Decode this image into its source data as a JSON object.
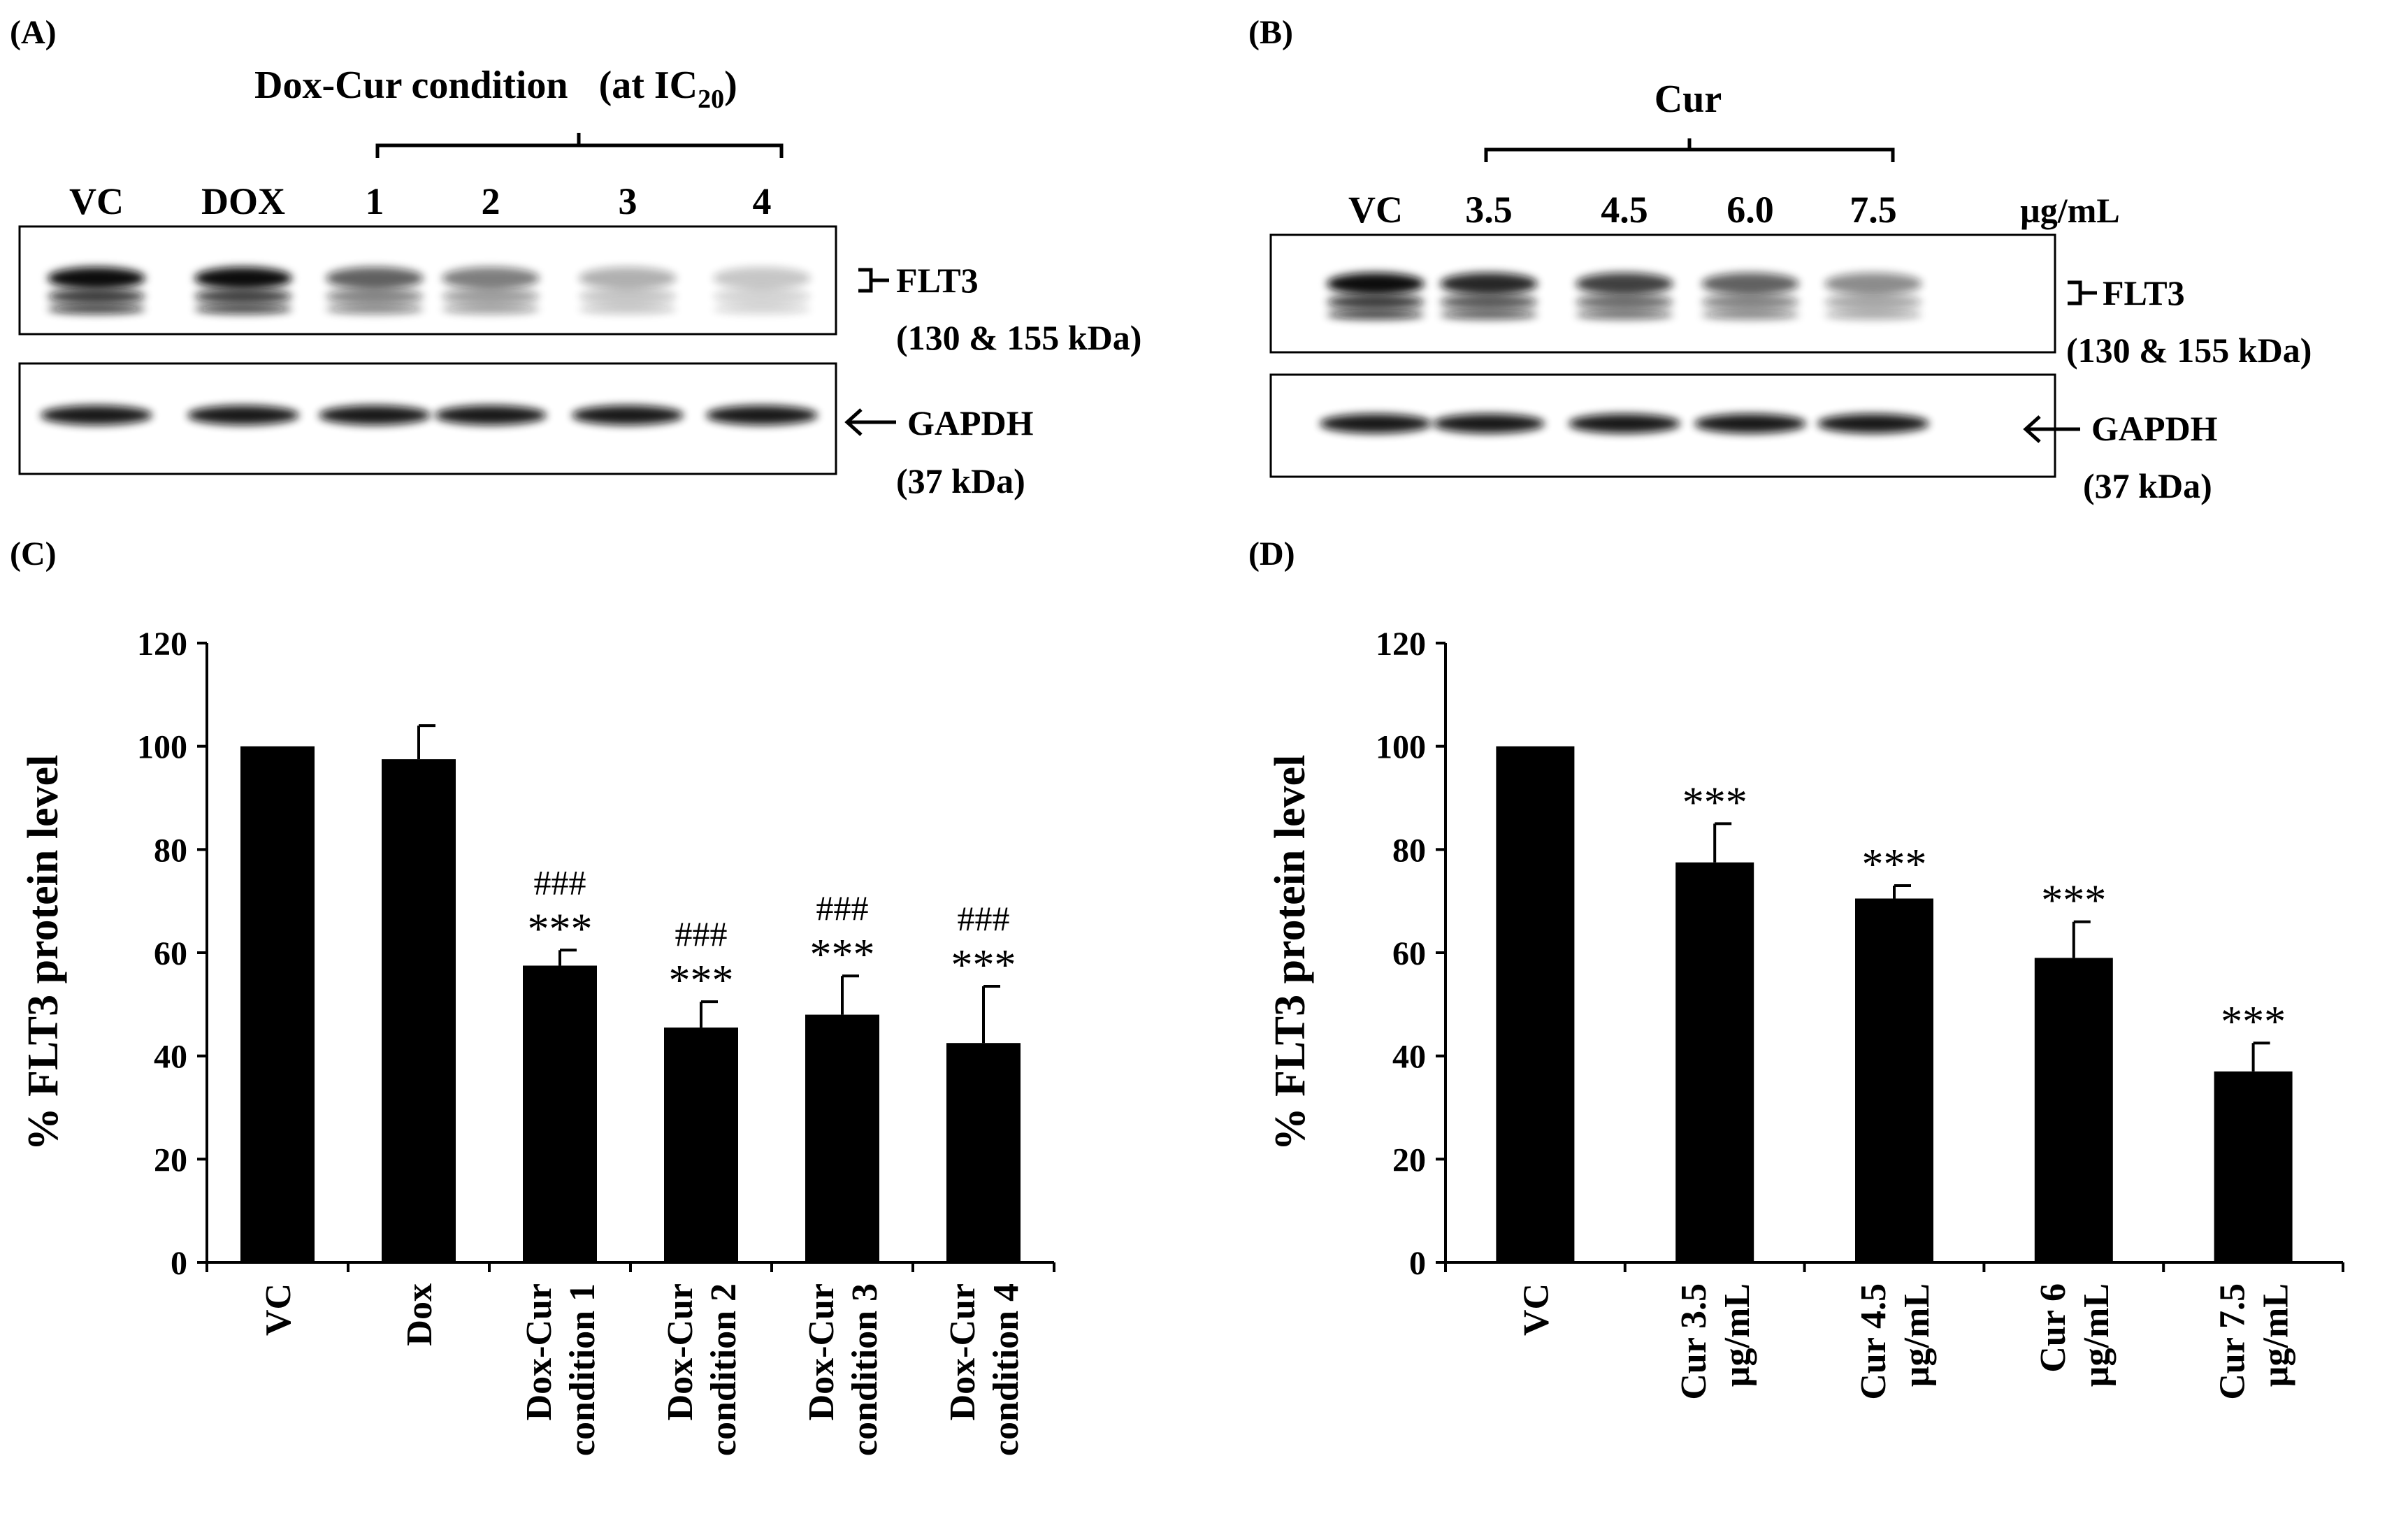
{
  "panels": {
    "a": {
      "label": "(A)",
      "header": "Dox-Cur condition",
      "header_suffix": "(at IC",
      "header_sub": "20",
      "header_close": ")",
      "lanes": [
        "VC",
        "DOX",
        "1",
        "2",
        "3",
        "4"
      ],
      "band1_name": "FLT3",
      "band1_kda": "(130 & 155 kDa)",
      "band2_name": "GAPDH",
      "band2_kda": "(37 kDa)",
      "flt3_intensity": [
        1.0,
        0.97,
        0.62,
        0.5,
        0.3,
        0.22
      ]
    },
    "b": {
      "label": "(B)",
      "header": "Cur",
      "lanes": [
        "VC",
        "3.5",
        "4.5",
        "6.0",
        "7.5"
      ],
      "unit": "µg/mL",
      "band1_name": "FLT3",
      "band1_kda": "(130 & 155 kDa)",
      "band2_name": "GAPDH",
      "band2_kda": "(37 kDa)",
      "flt3_intensity": [
        1.0,
        0.85,
        0.75,
        0.62,
        0.45
      ]
    },
    "c": {
      "label": "(C)"
    },
    "d": {
      "label": "(D)"
    }
  },
  "chart_data": [
    {
      "panel": "C",
      "type": "bar",
      "ylabel": "% FLT3 protein level",
      "ylim": [
        0,
        120
      ],
      "yticks": [
        "0",
        "20",
        "40",
        "60",
        "80",
        "100",
        "120"
      ],
      "categories": [
        [
          "VC"
        ],
        [
          "Dox"
        ],
        [
          "Dox-Cur",
          "condition 1"
        ],
        [
          "Dox-Cur",
          "condition 2"
        ],
        [
          "Dox-Cur",
          "condition 3"
        ],
        [
          "Dox-Cur",
          "condition 4"
        ]
      ],
      "values": [
        100,
        97.5,
        57.5,
        45.5,
        48,
        42.5
      ],
      "errors": [
        0,
        6.5,
        3,
        5,
        7.5,
        11
      ],
      "annotations": [
        [
          "",
          ""
        ],
        [
          "",
          ""
        ],
        [
          "###",
          "***"
        ],
        [
          "###",
          "***"
        ],
        [
          "###",
          "***"
        ],
        [
          "###",
          "***"
        ]
      ]
    },
    {
      "panel": "D",
      "type": "bar",
      "ylabel": "% FLT3 protein level",
      "ylim": [
        0,
        120
      ],
      "yticks": [
        "0",
        "20",
        "40",
        "60",
        "80",
        "100",
        "120"
      ],
      "categories": [
        [
          "VC"
        ],
        [
          "Cur 3.5",
          "µg/mL"
        ],
        [
          "Cur 4.5",
          "µg/mL"
        ],
        [
          "Cur 6",
          "µg/mL"
        ],
        [
          "Cur 7.5",
          "µg/mL"
        ]
      ],
      "values": [
        100,
        77.5,
        70.5,
        59,
        37
      ],
      "errors": [
        0,
        7.5,
        2.5,
        7,
        5.5
      ],
      "annotations": [
        [
          ""
        ],
        [
          "***"
        ],
        [
          "***"
        ],
        [
          "***"
        ],
        [
          "***"
        ]
      ]
    }
  ]
}
